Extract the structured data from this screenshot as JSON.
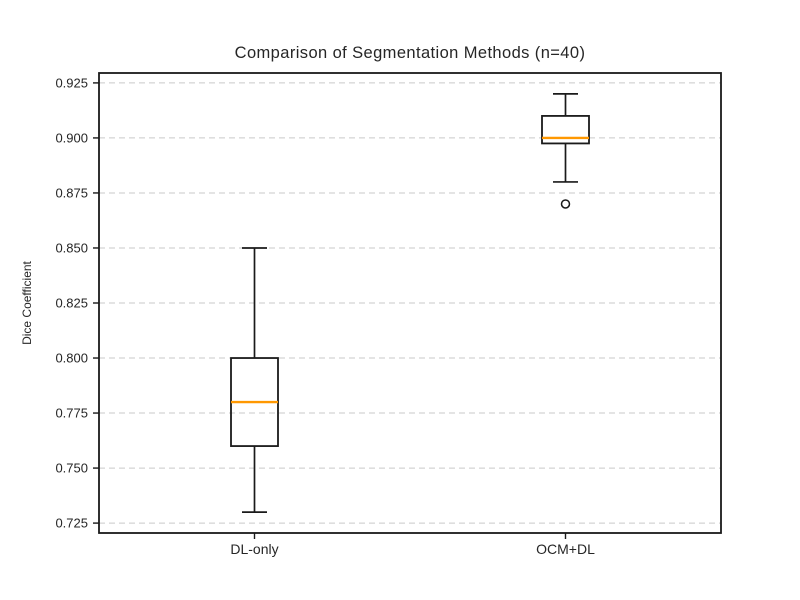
{
  "chart_data": {
    "type": "boxplot",
    "title": "Comparison of Segmentation Methods (n=40)",
    "xlabel": "",
    "ylabel": "Dice Coefficient",
    "categories": [
      "DL-only",
      "OCM+DL"
    ],
    "sample_size_label": "n=40",
    "ytick_labels": [
      "0.725",
      "0.750",
      "0.775",
      "0.800",
      "0.825",
      "0.850",
      "0.875",
      "0.900",
      "0.925"
    ],
    "ylim": [
      0.7205,
      0.9295
    ],
    "grid": "horizontal dashed",
    "legend": "none",
    "series": [
      {
        "name": "DL-only",
        "whisker_low": 0.73,
        "q1": 0.76,
        "median": 0.78,
        "q3": 0.8,
        "whisker_high": 0.85,
        "outliers": []
      },
      {
        "name": "OCM+DL",
        "whisker_low": 0.88,
        "q1": 0.8975,
        "median": 0.9,
        "q3": 0.91,
        "whisker_high": 0.92,
        "outliers": [
          0.87
        ]
      }
    ],
    "colors": {
      "median": "#ff9800",
      "box_line": "#1a1a1a",
      "grid": "#c9c9c9",
      "text": "#262626",
      "background": "#ffffff"
    }
  }
}
